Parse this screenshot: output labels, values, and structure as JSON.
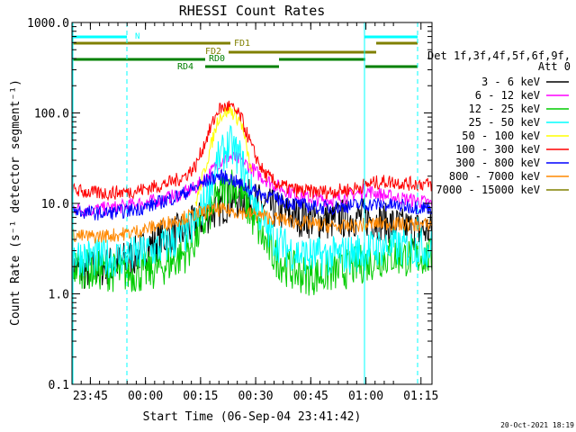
{
  "chart_data": {
    "type": "line",
    "title": "RHESSI Count Rates",
    "xlabel": "Start Time (06-Sep-04 23:41:42)",
    "ylabel": "Count Rate (s⁻¹ detector segment⁻¹)",
    "y_scale": "log",
    "ylim": [
      0.1,
      1000.0
    ],
    "y_ticks": [
      "0.1",
      "1.0",
      "10.0",
      "100.0",
      "1000.0"
    ],
    "xlim_minutes_from_23:41:42": [
      -1.7,
      96.3
    ],
    "x_ticks": [
      {
        "label": "23:45",
        "t": 3.3
      },
      {
        "label": "00:00",
        "t": 18.3
      },
      {
        "label": "00:15",
        "t": 33.3
      },
      {
        "label": "00:30",
        "t": 48.3
      },
      {
        "label": "00:45",
        "t": 63.3
      },
      {
        "label": "01:00",
        "t": 78.3
      },
      {
        "label": "01:15",
        "t": 93.3
      }
    ],
    "legend_header": [
      "Det 1f,3f,4f,5f,6f,9f,",
      "Att 0"
    ],
    "legend_position": "right",
    "series": [
      {
        "name": "3 - 6 keV",
        "color": "#000000",
        "values": [
          2.0,
          1.8,
          1.9,
          2.0,
          2.2,
          2.4,
          2.8,
          3.5,
          4.0,
          4.5,
          5.0,
          6.0,
          7.5,
          9.0,
          10.5,
          11.5,
          11.0,
          9.5,
          8.5,
          7.8,
          7.2,
          6.8,
          6.5,
          6.5,
          6.8,
          7.0,
          7.0,
          6.5,
          6.0,
          5.5,
          5.2,
          5.0,
          5.0
        ]
      },
      {
        "name": "6 - 12 keV",
        "color": "#ff00ff",
        "values": [
          9.0,
          8.5,
          8.5,
          8.8,
          9.0,
          9.5,
          10.0,
          10.5,
          11.0,
          12.0,
          13.0,
          15.0,
          20.0,
          28.0,
          33.0,
          30.0,
          24.0,
          19.0,
          16.0,
          14.0,
          12.5,
          11.5,
          11.0,
          11.0,
          11.5,
          12.5,
          14.0,
          13.0,
          12.0,
          11.5,
          11.0,
          10.5,
          10.0
        ]
      },
      {
        "name": "12 - 25 keV",
        "color": "#00cc00",
        "values": [
          2.0,
          1.9,
          1.8,
          1.8,
          1.7,
          1.7,
          1.7,
          1.8,
          2.0,
          2.3,
          2.8,
          4.0,
          7.0,
          12.0,
          17.0,
          13.0,
          7.0,
          4.0,
          2.6,
          2.0,
          1.7,
          1.6,
          1.6,
          1.7,
          1.8,
          2.0,
          2.2,
          2.4,
          2.6,
          2.6,
          2.5,
          2.6,
          2.5
        ]
      },
      {
        "name": "25 - 50 keV",
        "color": "#00ffff",
        "values": [
          2.8,
          2.6,
          2.5,
          2.5,
          2.5,
          2.6,
          2.7,
          3.0,
          3.3,
          3.8,
          4.5,
          6.0,
          12.0,
          30.0,
          45.0,
          30.0,
          12.0,
          6.0,
          4.0,
          3.2,
          2.8,
          2.6,
          2.6,
          2.6,
          2.7,
          2.8,
          3.0,
          3.2,
          3.3,
          3.2,
          3.2,
          3.3,
          3.2
        ]
      },
      {
        "name": "50 - 100 keV",
        "color": "#ffff00",
        "values": [
          null,
          null,
          null,
          null,
          null,
          null,
          null,
          null,
          null,
          null,
          null,
          10.0,
          30.0,
          90.0,
          110.0,
          80.0,
          20.0,
          null,
          null,
          null,
          null,
          null,
          null,
          null,
          null,
          null,
          null,
          null,
          null,
          null,
          null,
          null,
          null
        ]
      },
      {
        "name": "100 - 300 keV",
        "color": "#ff0000",
        "values": [
          14.0,
          13.5,
          13.0,
          13.0,
          13.2,
          13.5,
          14.0,
          15.0,
          16.0,
          17.5,
          20.0,
          26.0,
          55.0,
          110.0,
          120.0,
          90.0,
          40.0,
          22.0,
          17.0,
          15.0,
          14.0,
          13.5,
          13.5,
          13.5,
          14.0,
          14.5,
          16.0,
          17.0,
          17.5,
          17.0,
          16.5,
          16.5,
          16.0
        ]
      },
      {
        "name": "300 - 800 keV",
        "color": "#0000ff",
        "values": [
          8.5,
          8.0,
          7.8,
          7.8,
          8.0,
          8.3,
          8.8,
          9.5,
          10.5,
          11.5,
          13.0,
          15.0,
          18.0,
          20.0,
          19.0,
          16.0,
          14.0,
          12.5,
          11.5,
          10.5,
          9.8,
          9.3,
          9.0,
          9.0,
          9.2,
          9.5,
          9.7,
          9.8,
          9.6,
          9.4,
          9.2,
          9.0,
          9.0
        ]
      },
      {
        "name": "800 - 7000 keV",
        "color": "#ff8800",
        "values": [
          4.5,
          4.3,
          4.3,
          4.4,
          4.5,
          4.7,
          5.0,
          5.4,
          5.9,
          6.4,
          7.0,
          7.6,
          8.2,
          8.5,
          8.3,
          8.0,
          7.6,
          7.2,
          6.8,
          6.5,
          6.2,
          6.0,
          5.8,
          5.6,
          5.5,
          5.6,
          5.8,
          6.0,
          6.0,
          5.9,
          5.8,
          5.8,
          5.8
        ]
      },
      {
        "name": "7000 - 15000 keV",
        "color": "#808000",
        "values": [
          null,
          null,
          null,
          null,
          null,
          null,
          null,
          null,
          null,
          null,
          null,
          null,
          null,
          null,
          null,
          null,
          null,
          null,
          null,
          null,
          null,
          null,
          null,
          null,
          null,
          null,
          null,
          null,
          null,
          null,
          null,
          null,
          null
        ]
      }
    ],
    "series_t": [
      -1.7,
      1.4,
      4.4,
      7.5,
      10.6,
      13.6,
      16.7,
      19.8,
      22.8,
      25.9,
      29.0,
      32.0,
      35.1,
      38.2,
      41.2,
      44.3,
      47.4,
      50.4,
      53.5,
      56.6,
      59.6,
      62.7,
      65.8,
      68.8,
      71.9,
      75.0,
      78.0,
      81.1,
      84.2,
      87.2,
      90.3,
      93.4,
      96.3
    ],
    "annotations": {
      "markers": [
        {
          "label": "N",
          "color": "#00ffff"
        },
        {
          "label": "FD1",
          "color": "#808000"
        },
        {
          "label": "FD2",
          "color": "#808000"
        },
        {
          "label": "RD0",
          "color": "#008000"
        },
        {
          "label": "RD4",
          "color": "#008000"
        }
      ],
      "timestamp": "20-Oct-2021 18:19"
    }
  }
}
